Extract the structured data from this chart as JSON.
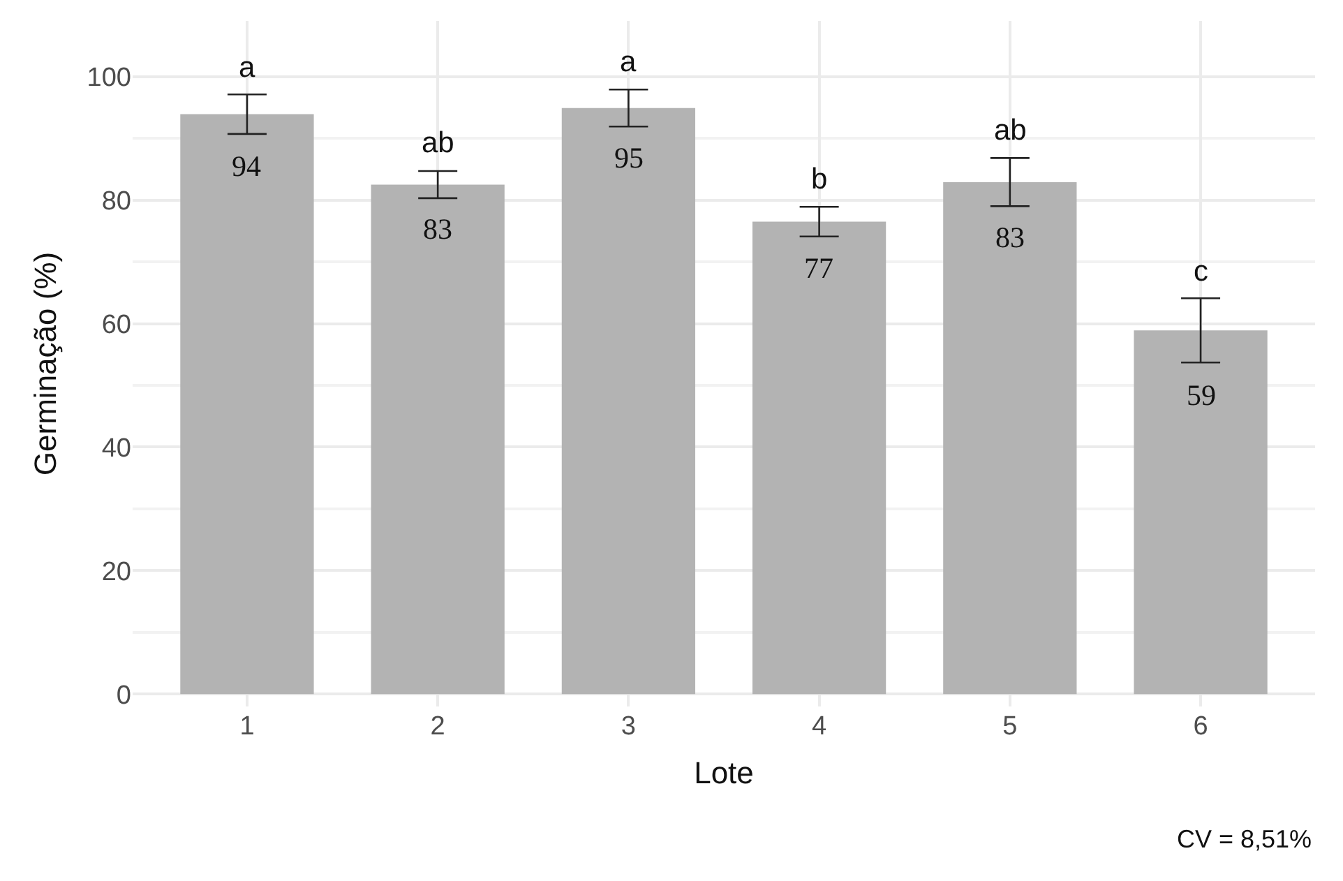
{
  "chart_data": {
    "type": "bar",
    "xlabel": "Lote",
    "ylabel": "Germinação (%)",
    "categories": [
      "1",
      "2",
      "3",
      "4",
      "5",
      "6"
    ],
    "values": [
      93.9,
      82.5,
      94.9,
      76.5,
      82.9,
      58.9
    ],
    "errors": [
      3.2,
      2.2,
      3.0,
      2.4,
      3.9,
      5.2
    ],
    "value_labels": [
      "94",
      "83",
      "95",
      "77",
      "83",
      "59"
    ],
    "color": "#b3b3b3",
    "ylim": [
      -2,
      109
    ],
    "yticks": [
      0,
      20,
      40,
      60,
      80,
      100
    ],
    "grid": true,
    "annotations": [
      "a",
      "ab",
      "a",
      "b",
      "ab",
      "c",
      "CV = 8,51%"
    ]
  }
}
